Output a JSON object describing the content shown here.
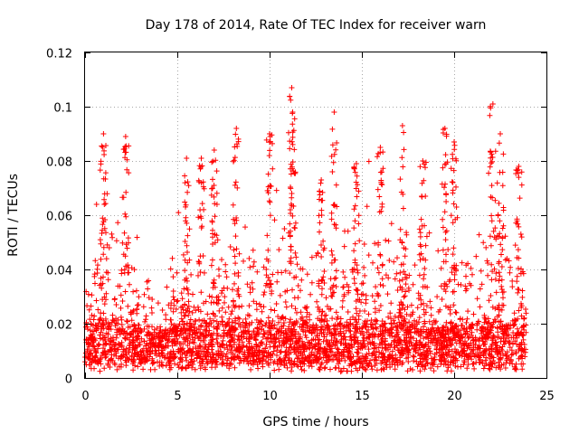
{
  "chart_data": {
    "type": "scatter",
    "title": "Day 178 of 2014, Rate Of TEC Index for receiver warn",
    "xlabel": "GPS time / hours",
    "ylabel": "ROTI / TECUs",
    "xlim": [
      0,
      25
    ],
    "ylim": [
      0,
      0.12
    ],
    "xticks": [
      0,
      5,
      10,
      15,
      20,
      25
    ],
    "xtick_labels": [
      "0",
      "5",
      "10",
      "15",
      "20",
      "25"
    ],
    "yticks": [
      0,
      0.02,
      0.04,
      0.06,
      0.08,
      0.1,
      0.12
    ],
    "ytick_labels": [
      "0",
      "0.02",
      "0.04",
      "0.06",
      "0.08",
      "0.1",
      "0.12"
    ],
    "grid": true,
    "marker": "+",
    "marker_color": "#ff0000",
    "data_range_x": [
      0,
      23.9
    ],
    "peak_points": [
      {
        "x": 11.2,
        "y": 0.107
      },
      {
        "x": 22.1,
        "y": 0.101
      },
      {
        "x": 11.25,
        "y": 0.098
      },
      {
        "x": 13.5,
        "y": 0.098
      },
      {
        "x": 17.2,
        "y": 0.093
      },
      {
        "x": 19.5,
        "y": 0.092
      },
      {
        "x": 8.2,
        "y": 0.092
      },
      {
        "x": 1.0,
        "y": 0.09
      },
      {
        "x": 2.2,
        "y": 0.089
      },
      {
        "x": 10.0,
        "y": 0.09
      },
      {
        "x": 22.5,
        "y": 0.09
      },
      {
        "x": 20.0,
        "y": 0.087
      },
      {
        "x": 16.0,
        "y": 0.085
      },
      {
        "x": 7.0,
        "y": 0.084
      },
      {
        "x": 5.5,
        "y": 0.081
      },
      {
        "x": 6.3,
        "y": 0.081
      },
      {
        "x": 18.3,
        "y": 0.08
      },
      {
        "x": 14.7,
        "y": 0.079
      },
      {
        "x": 23.5,
        "y": 0.078
      },
      {
        "x": 12.8,
        "y": 0.073
      }
    ],
    "activity_profile": [
      {
        "x": 0.0,
        "base": 0.011,
        "spread": 0.018
      },
      {
        "x": 1.0,
        "base": 0.014,
        "spread": 0.04
      },
      {
        "x": 2.0,
        "base": 0.013,
        "spread": 0.035
      },
      {
        "x": 3.0,
        "base": 0.011,
        "spread": 0.02
      },
      {
        "x": 4.0,
        "base": 0.01,
        "spread": 0.012
      },
      {
        "x": 5.0,
        "base": 0.011,
        "spread": 0.028
      },
      {
        "x": 6.0,
        "base": 0.012,
        "spread": 0.03
      },
      {
        "x": 7.0,
        "base": 0.012,
        "spread": 0.022
      },
      {
        "x": 8.0,
        "base": 0.012,
        "spread": 0.026
      },
      {
        "x": 9.0,
        "base": 0.012,
        "spread": 0.028
      },
      {
        "x": 10.0,
        "base": 0.013,
        "spread": 0.034
      },
      {
        "x": 11.0,
        "base": 0.013,
        "spread": 0.034
      },
      {
        "x": 12.0,
        "base": 0.013,
        "spread": 0.03
      },
      {
        "x": 13.0,
        "base": 0.012,
        "spread": 0.026
      },
      {
        "x": 14.0,
        "base": 0.012,
        "spread": 0.03
      },
      {
        "x": 15.0,
        "base": 0.013,
        "spread": 0.034
      },
      {
        "x": 16.0,
        "base": 0.013,
        "spread": 0.036
      },
      {
        "x": 17.0,
        "base": 0.013,
        "spread": 0.033
      },
      {
        "x": 18.0,
        "base": 0.012,
        "spread": 0.022
      },
      {
        "x": 19.0,
        "base": 0.011,
        "spread": 0.022
      },
      {
        "x": 20.0,
        "base": 0.012,
        "spread": 0.03
      },
      {
        "x": 21.0,
        "base": 0.012,
        "spread": 0.024
      },
      {
        "x": 22.0,
        "base": 0.013,
        "spread": 0.038
      },
      {
        "x": 23.0,
        "base": 0.012,
        "spread": 0.034
      },
      {
        "x": 23.9,
        "base": 0.011,
        "spread": 0.02
      }
    ]
  }
}
